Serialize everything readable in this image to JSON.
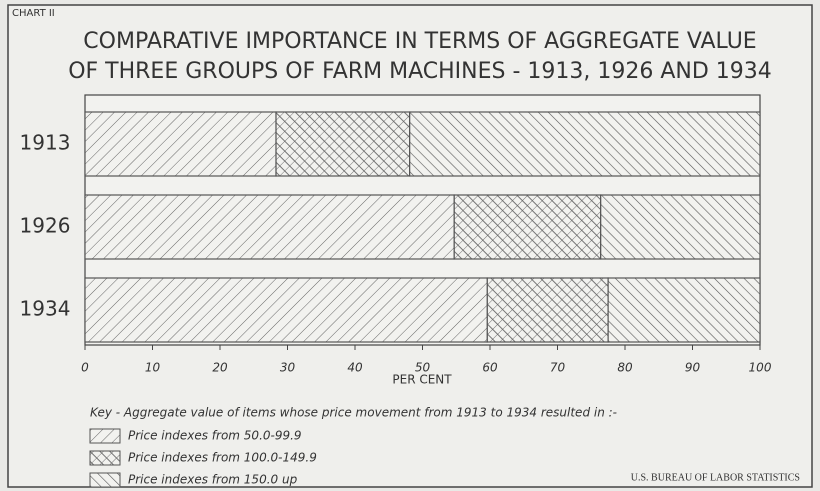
{
  "chart_data": {
    "type": "stacked-barh",
    "label": "CHART II",
    "title": [
      "COMPARATIVE IMPORTANCE IN TERMS OF AGGREGATE VALUE",
      "OF THREE GROUPS OF FARM MACHINES - 1913, 1926 AND 1934"
    ],
    "categories": [
      "1913",
      "1926",
      "1934"
    ],
    "series": [
      {
        "name": "Price indexes from 50.0-99.9",
        "color": "#555555",
        "pattern": "hatch-right",
        "values": [
          28.3,
          54.7,
          59.6
        ]
      },
      {
        "name": "Price indexes from 100.0-149.9",
        "color": "#555555",
        "pattern": "crosshatch",
        "values": [
          19.8,
          21.7,
          17.9
        ]
      },
      {
        "name": "Price indexes from 150.0 up",
        "color": "#555555",
        "pattern": "hatch-left",
        "values": [
          51.9,
          23.6,
          22.5
        ]
      }
    ],
    "xlabel": "PER CENT",
    "xlim": [
      0,
      100
    ],
    "xticks": [
      0,
      10,
      20,
      30,
      40,
      50,
      60,
      70,
      80,
      90,
      100
    ],
    "legend_title": "Key - Aggregate value of items whose price movement from 1913 to 1934 resulted in :-",
    "source": "U.S. BUREAU OF LABOR STATISTICS"
  }
}
